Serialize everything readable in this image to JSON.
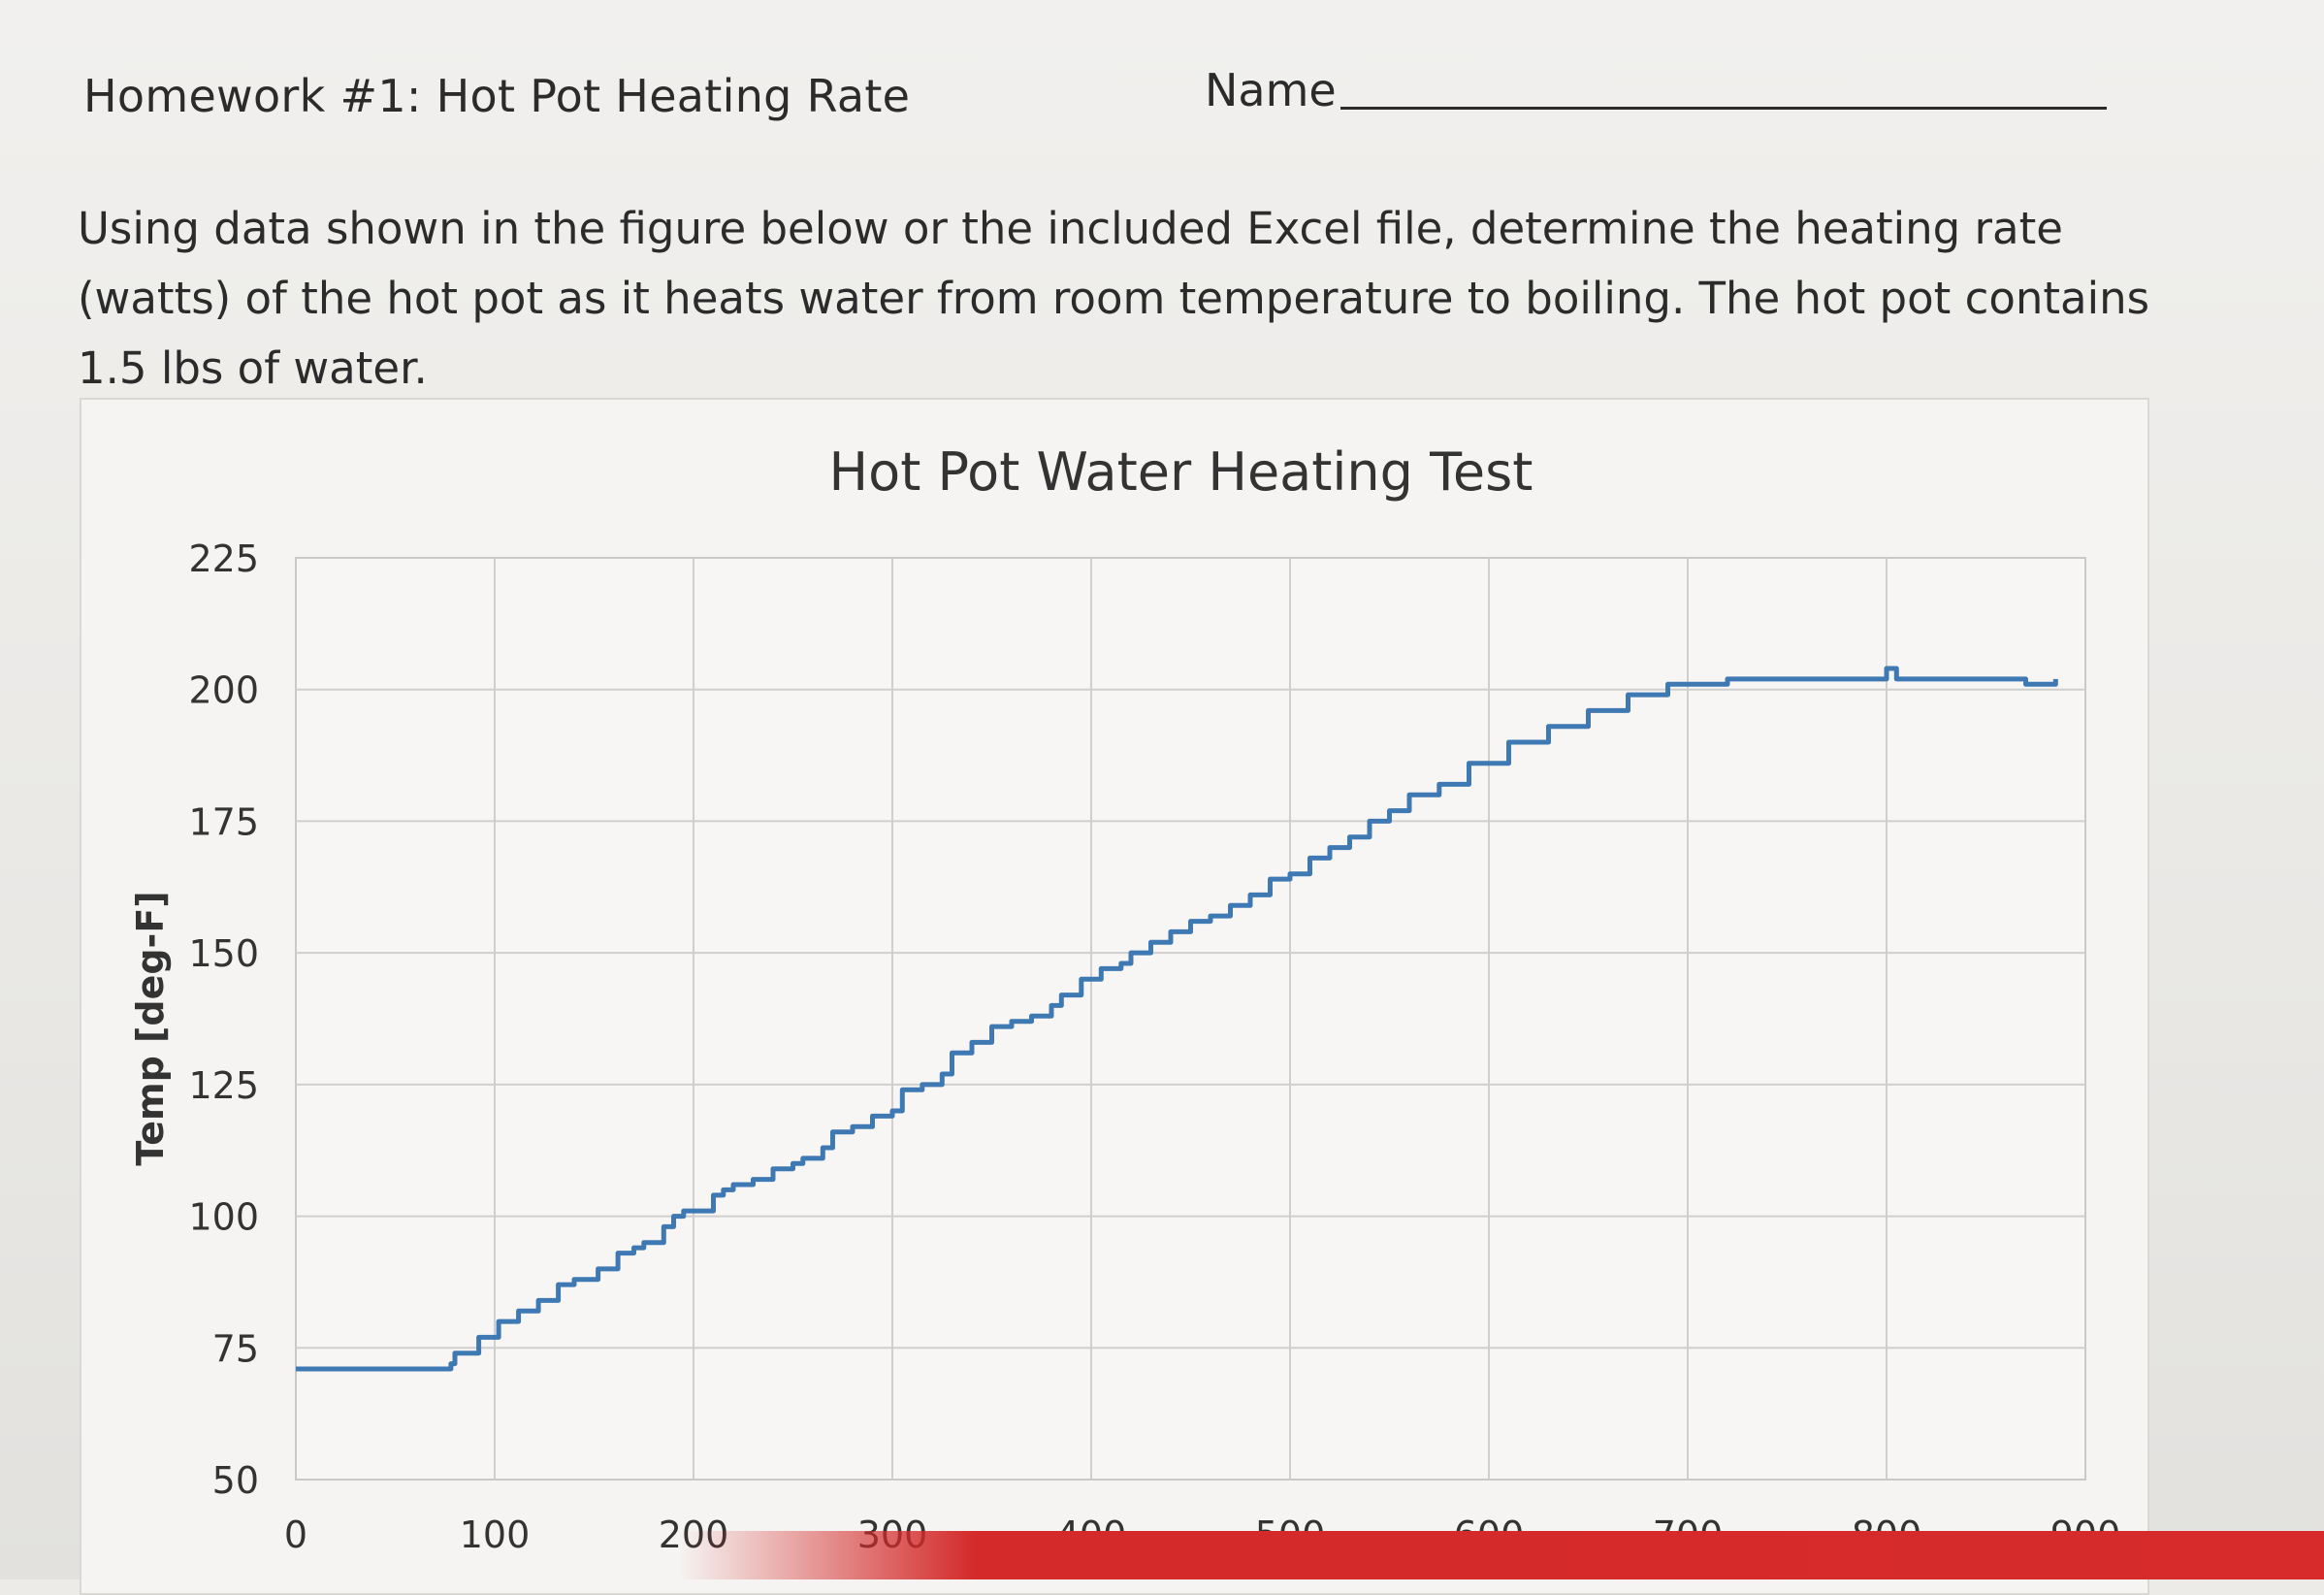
{
  "header": {
    "title": "Homework #1:  Hot Pot Heating Rate",
    "name_label": "Name"
  },
  "problem_text": {
    "line1": "Using data shown in the figure below or the included Excel file, determine the heating rate",
    "line2": "(watts) of the hot pot as it heats water from room temperature to boiling.  The hot pot contains",
    "line3": "1.5 lbs of water."
  },
  "colors": {
    "series": "#3f79b4",
    "grid": "#cfcfcf",
    "accent_band": "#d72b2b"
  },
  "chart_data": {
    "type": "line",
    "title": "Hot Pot Water Heating Test",
    "xlabel": "",
    "ylabel": "Temp [deg-F]",
    "xlim": [
      0,
      900
    ],
    "ylim": [
      50,
      225
    ],
    "x_ticks": [
      "0",
      "100",
      "200",
      "300",
      "400",
      "500",
      "600",
      "700",
      "800",
      "900"
    ],
    "y_ticks": [
      "50",
      "75",
      "100",
      "125",
      "150",
      "175",
      "200",
      "225"
    ],
    "grid": true,
    "legend": "none",
    "series": [
      {
        "x": [
          0,
          70,
          78,
          80,
          90,
          92,
          100,
          102,
          110,
          112,
          120,
          122,
          130,
          132,
          140,
          145,
          152,
          160,
          162,
          170,
          175,
          180,
          185,
          190,
          195,
          200,
          210,
          215,
          220,
          230,
          240,
          250,
          255,
          265,
          270,
          280,
          290,
          300,
          305,
          315,
          325,
          330,
          340,
          350,
          360,
          370,
          380,
          385,
          395,
          405,
          415,
          420,
          430,
          440,
          450,
          460,
          470,
          480,
          490,
          500,
          510,
          520,
          530,
          540,
          550,
          560,
          575,
          590,
          610,
          630,
          650,
          670,
          690,
          720,
          760,
          790,
          800,
          805,
          830,
          860,
          870,
          885
        ],
        "y": [
          71,
          71,
          72,
          74,
          74,
          77,
          77,
          80,
          80,
          82,
          82,
          84,
          84,
          87,
          88,
          88,
          90,
          90,
          93,
          94,
          95,
          95,
          98,
          100,
          101,
          101,
          104,
          105,
          106,
          107,
          109,
          110,
          111,
          113,
          116,
          117,
          119,
          120,
          124,
          125,
          127,
          131,
          133,
          136,
          137,
          138,
          140,
          142,
          145,
          147,
          148,
          150,
          152,
          154,
          156,
          157,
          159,
          161,
          164,
          165,
          168,
          170,
          172,
          175,
          177,
          180,
          182,
          186,
          190,
          193,
          196,
          199,
          201,
          202,
          202,
          202,
          204,
          202,
          202,
          202,
          201,
          202
        ]
      }
    ]
  }
}
